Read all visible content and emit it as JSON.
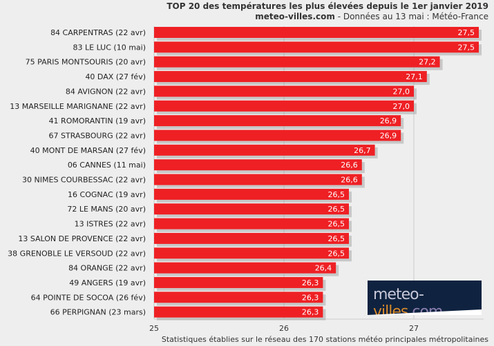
{
  "chart_data": {
    "type": "bar",
    "orientation": "horizontal",
    "title": "TOP 20 des températures les plus élevées depuis le 1er janvier 2019",
    "subtitle_brand": "meteo-villes.com",
    "subtitle_rest": " - Données au 13 mai : Météo-France",
    "footnote": "Statistiques établies sur le réseau des 170 stations météo principales métropolitaines",
    "logo_text": "meteo-villes.com",
    "categories": [
      "84 CARPENTRAS (22 avr)",
      "83 LE LUC (10 mai)",
      "75 PARIS MONTSOURIS (20 avr)",
      "40 DAX (27 fév)",
      "84 AVIGNON (22 avr)",
      "13 MARSEILLE MARIGNANE (22 avr)",
      "41 ROMORANTIN (19 avr)",
      "67 STRASBOURG (22 avr)",
      "40 MONT DE MARSAN (27 fév)",
      "06 CANNES (11 mai)",
      "30 NIMES COURBESSAC (22 avr)",
      "16 COGNAC (19 avr)",
      "72 LE MANS (20 avr)",
      "13 ISTRES (22 avr)",
      "13 SALON DE PROVENCE (22 avr)",
      "38 GRENOBLE LE VERSOUD (22 avr)",
      "84 ORANGE (22 avr)",
      "49 ANGERS (19 avr)",
      "64 POINTE DE SOCOA (26 fév)",
      "66 PERPIGNAN (23 mars)"
    ],
    "values": [
      27.5,
      27.5,
      27.2,
      27.1,
      27.0,
      27.0,
      26.9,
      26.9,
      26.7,
      26.6,
      26.6,
      26.5,
      26.5,
      26.5,
      26.5,
      26.5,
      26.4,
      26.3,
      26.3,
      26.3
    ],
    "value_labels": [
      "27,5",
      "27,5",
      "27,2",
      "27,1",
      "27,0",
      "27,0",
      "26,9",
      "26,9",
      "26,7",
      "26,6",
      "26,6",
      "26,5",
      "26,5",
      "26,5",
      "26,5",
      "26,5",
      "26,4",
      "26,3",
      "26,3",
      "26,3"
    ],
    "xlim": [
      25,
      27.55
    ],
    "xticks": [
      "25",
      "26",
      "27"
    ],
    "grid": true,
    "bar_color": "#ee2024"
  }
}
